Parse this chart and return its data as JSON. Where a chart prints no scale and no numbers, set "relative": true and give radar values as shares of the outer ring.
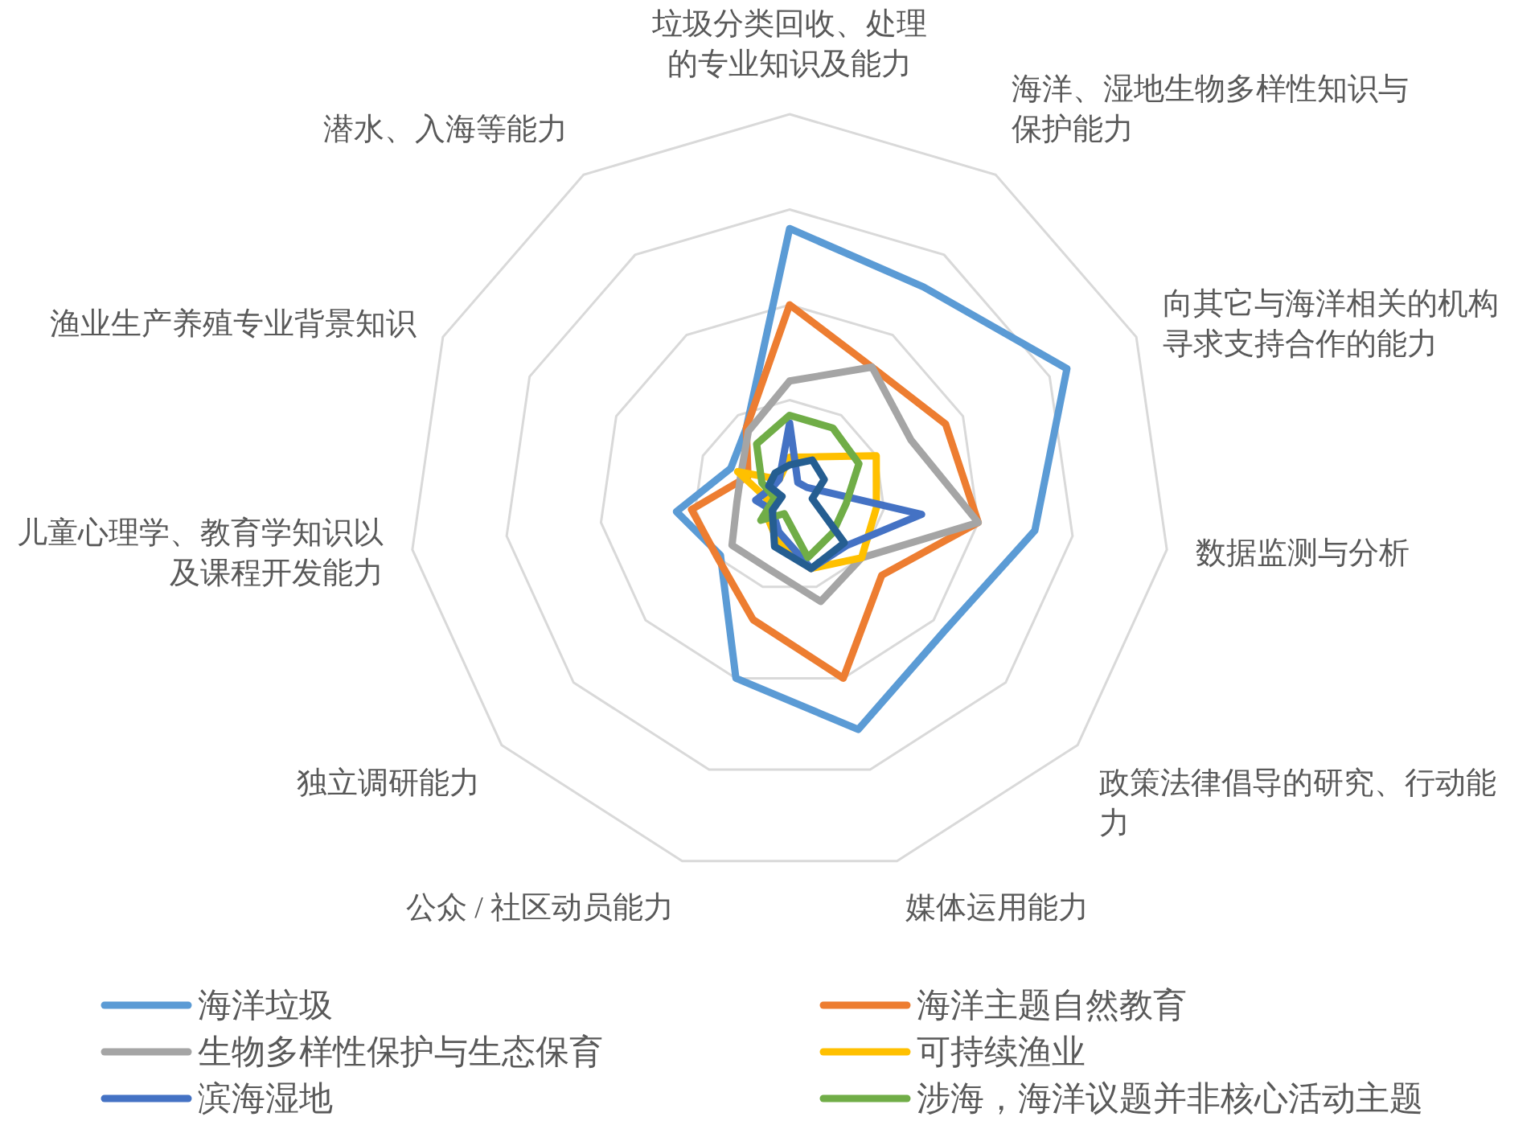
{
  "chart_data": {
    "type": "radar",
    "relative": true,
    "legend": "bottom",
    "categories": [
      "垃圾分类回收、处理的专业知识及能力",
      "海洋、湿地生物多样性知识与保护能力",
      "向其它与海洋相关的机构寻求支持合作的能力",
      "数据监测与分析",
      "政策法律倡导的研究、行动能力",
      "媒体运用能力",
      "公众 / 社区动员能力",
      "独立调研能力",
      "儿童心理学、教育学知识以及课程开发能力",
      "渔业生产养殖专业背景知识",
      "潜水、入海等能力"
    ],
    "series": [
      {
        "name": "海洋垃圾",
        "color": "#5b9bd5",
        "values": [
          0.7,
          0.65,
          0.8,
          0.65,
          0.54,
          0.64,
          0.5,
          0.24,
          0.3,
          0.17,
          0.21
        ]
      },
      {
        "name": "海洋主题自然教育",
        "color": "#ed7d31",
        "values": [
          0.5,
          0.4,
          0.45,
          0.5,
          0.32,
          0.5,
          0.34,
          0.25,
          0.26,
          0.12,
          0.21
        ]
      },
      {
        "name": "生物多样性保护与生态保育",
        "color": "#a5a5a5",
        "values": [
          0.3,
          0.4,
          0.35,
          0.5,
          0.25,
          0.29,
          0.2,
          0.2,
          0.14,
          0.14,
          0.2
        ]
      },
      {
        "name": "可持续渔业",
        "color": "#ffc000",
        "values": [
          0.1,
          0.12,
          0.25,
          0.23,
          0.25,
          0.2,
          0.12,
          0.08,
          0.06,
          0.15,
          0.05
        ]
      },
      {
        "name": "滨海湿地",
        "color": "#4472c4",
        "values": [
          0.19,
          0.04,
          0.05,
          0.35,
          0.2,
          0.2,
          0.1,
          0.06,
          0.09,
          0.05,
          0.05
        ]
      },
      {
        "name": "涉海，海洋议题并非核心活动主题",
        "color": "#70ad47",
        "values": [
          0.21,
          0.21,
          0.2,
          0.15,
          0.15,
          0.17,
          0.05,
          0.1,
          0.04,
          0.08,
          0.16
        ]
      },
      {
        "color": "#255e91",
        "values": [
          0.08,
          0.11,
          0.1,
          0.06,
          0.19,
          0.2,
          0.14,
          0.06,
          0.02,
          0.06,
          0.07
        ]
      }
    ]
  }
}
